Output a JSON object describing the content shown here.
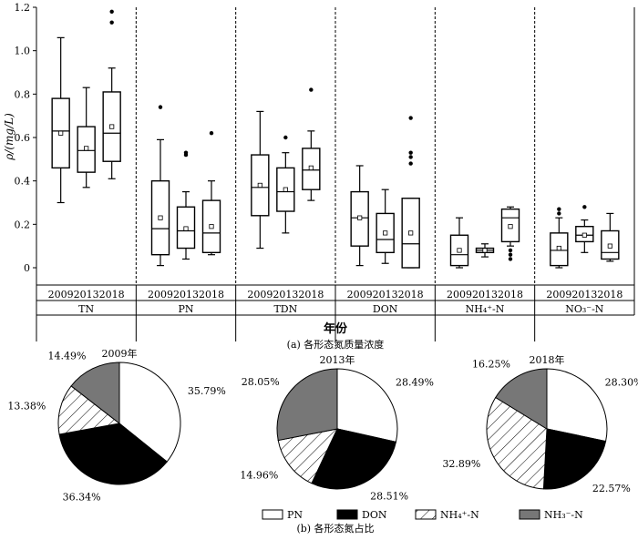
{
  "chart_data": [
    {
      "type": "box",
      "ylabel": "ρ/(mg/L)",
      "xlabel": "年份",
      "ylim": [
        0,
        1.2
      ],
      "yticks": [
        "0",
        "0.2",
        "0.4",
        "0.6",
        "0.8",
        "1.0",
        "1.2"
      ],
      "years": [
        "2009",
        "2013",
        "2018"
      ],
      "caption": "(a)  各形态氮质量浓度",
      "groups": [
        {
          "label": "TN",
          "boxes": [
            {
              "year": "2009",
              "min": 0.3,
              "q1": 0.46,
              "median": 0.63,
              "q3": 0.78,
              "max": 1.06,
              "mean": 0.62,
              "outliers": []
            },
            {
              "year": "2013",
              "min": 0.37,
              "q1": 0.44,
              "median": 0.54,
              "q3": 0.65,
              "max": 0.83,
              "mean": 0.55,
              "outliers": []
            },
            {
              "year": "2018",
              "min": 0.41,
              "q1": 0.49,
              "median": 0.62,
              "q3": 0.81,
              "max": 0.92,
              "mean": 0.65,
              "outliers": [
                1.13,
                1.18
              ]
            }
          ]
        },
        {
          "label": "PN",
          "boxes": [
            {
              "year": "2009",
              "min": 0.01,
              "q1": 0.06,
              "median": 0.18,
              "q3": 0.4,
              "max": 0.59,
              "mean": 0.23,
              "outliers": [
                0.74
              ]
            },
            {
              "year": "2013",
              "min": 0.04,
              "q1": 0.09,
              "median": 0.17,
              "q3": 0.28,
              "max": 0.35,
              "mean": 0.18,
              "outliers": [
                0.52,
                0.53
              ]
            },
            {
              "year": "2018",
              "min": 0.06,
              "q1": 0.07,
              "median": 0.16,
              "q3": 0.31,
              "max": 0.4,
              "mean": 0.19,
              "outliers": [
                0.62
              ]
            }
          ]
        },
        {
          "label": "TDN",
          "boxes": [
            {
              "year": "2009",
              "min": 0.09,
              "q1": 0.24,
              "median": 0.37,
              "q3": 0.52,
              "max": 0.72,
              "mean": 0.38,
              "outliers": []
            },
            {
              "year": "2013",
              "min": 0.16,
              "q1": 0.26,
              "median": 0.35,
              "q3": 0.46,
              "max": 0.53,
              "mean": 0.36,
              "outliers": [
                0.6
              ]
            },
            {
              "year": "2018",
              "min": 0.31,
              "q1": 0.36,
              "median": 0.45,
              "q3": 0.55,
              "max": 0.63,
              "mean": 0.46,
              "outliers": [
                0.82
              ]
            }
          ]
        },
        {
          "label": "DON",
          "boxes": [
            {
              "year": "2009",
              "min": 0.01,
              "q1": 0.1,
              "median": 0.23,
              "q3": 0.35,
              "max": 0.47,
              "mean": 0.23,
              "outliers": []
            },
            {
              "year": "2013",
              "min": 0.02,
              "q1": 0.07,
              "median": 0.13,
              "q3": 0.25,
              "max": 0.36,
              "mean": 0.16,
              "outliers": []
            },
            {
              "year": "2018",
              "min": 0.0,
              "q1": 0.0,
              "median": 0.11,
              "q3": 0.32,
              "max": 0.32,
              "mean": 0.16,
              "outliers": [
                0.48,
                0.51,
                0.53,
                0.69
              ]
            }
          ]
        },
        {
          "label": "NH₄⁺-N",
          "boxes": [
            {
              "year": "2009",
              "min": 0.0,
              "q1": 0.01,
              "median": 0.06,
              "q3": 0.15,
              "max": 0.23,
              "mean": 0.08,
              "outliers": []
            },
            {
              "year": "2013",
              "min": 0.05,
              "q1": 0.07,
              "median": 0.08,
              "q3": 0.09,
              "max": 0.11,
              "mean": 0.08,
              "outliers": []
            },
            {
              "year": "2018",
              "min": 0.1,
              "q1": 0.12,
              "median": 0.23,
              "q3": 0.27,
              "max": 0.28,
              "mean": 0.19,
              "outliers": [
                0.04,
                0.06,
                0.08
              ]
            }
          ]
        },
        {
          "label": "NO₃⁻-N",
          "boxes": [
            {
              "year": "2009",
              "min": 0.0,
              "q1": 0.01,
              "median": 0.08,
              "q3": 0.16,
              "max": 0.23,
              "mean": 0.09,
              "outliers": [
                0.25,
                0.27
              ]
            },
            {
              "year": "2013",
              "min": 0.07,
              "q1": 0.12,
              "median": 0.15,
              "q3": 0.19,
              "max": 0.22,
              "mean": 0.15,
              "outliers": [
                0.28
              ]
            },
            {
              "year": "2018",
              "min": 0.03,
              "q1": 0.04,
              "median": 0.07,
              "q3": 0.17,
              "max": 0.25,
              "mean": 0.1,
              "outliers": []
            }
          ]
        }
      ]
    },
    {
      "type": "pie",
      "caption": "(b)  各形态氮占比",
      "legend": [
        {
          "label": "PN",
          "fill": "#ffffff"
        },
        {
          "label": "DON",
          "fill": "#000000"
        },
        {
          "label": "NH₄⁺-N",
          "fill": "hatch"
        },
        {
          "label": "NH₃⁻-N",
          "fill": "#777777"
        }
      ],
      "pies": [
        {
          "title": "2009年",
          "slices": [
            {
              "name": "PN",
              "value": 35.79,
              "label": "35.79%"
            },
            {
              "name": "DON",
              "value": 36.34,
              "label": "36.34%"
            },
            {
              "name": "NH₄⁺-N",
              "value": 13.38,
              "label": "13.38%"
            },
            {
              "name": "NH₃⁻-N",
              "value": 14.49,
              "label": "14.49%"
            }
          ]
        },
        {
          "title": "2013年",
          "slices": [
            {
              "name": "PN",
              "value": 28.49,
              "label": "28.49%"
            },
            {
              "name": "DON",
              "value": 28.51,
              "label": "28.51%"
            },
            {
              "name": "NH₄⁺-N",
              "value": 14.96,
              "label": "14.96%"
            },
            {
              "name": "NH₃⁻-N",
              "value": 28.05,
              "label": "28.05%"
            }
          ]
        },
        {
          "title": "2018年",
          "slices": [
            {
              "name": "PN",
              "value": 28.3,
              "label": "28.30%"
            },
            {
              "name": "DON",
              "value": 22.57,
              "label": "22.57%"
            },
            {
              "name": "NH₄⁺-N",
              "value": 32.89,
              "label": "32.89%"
            },
            {
              "name": "NH₃⁻-N",
              "value": 16.25,
              "label": "16.25%"
            }
          ]
        }
      ]
    }
  ]
}
